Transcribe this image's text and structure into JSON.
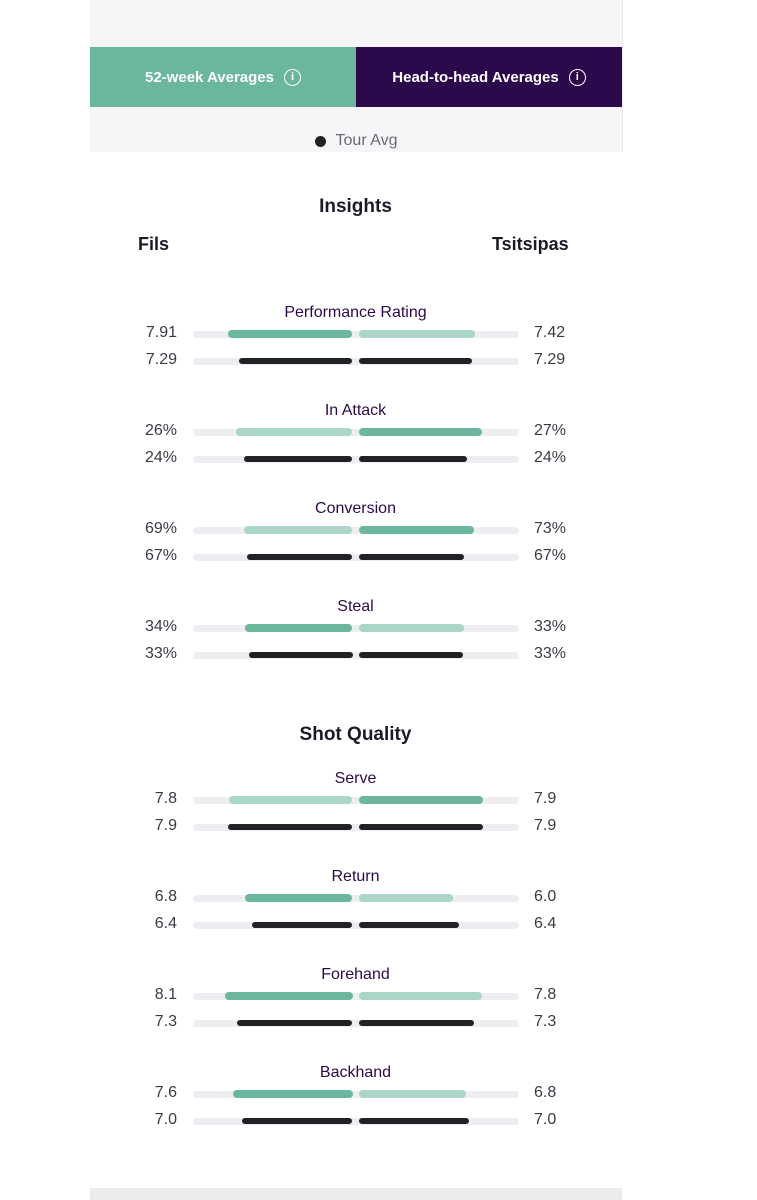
{
  "tabs": [
    {
      "label": "52-week Averages",
      "icon": "info-icon",
      "color": "#6ab79c"
    },
    {
      "label": "Head-to-head Averages",
      "icon": "info-icon",
      "color": "#2b0a4b"
    }
  ],
  "legend": {
    "label": "Tour Avg"
  },
  "players": {
    "left": "Fils",
    "right": "Tsitsipas"
  },
  "colors": {
    "stronger": "#6ab79c",
    "weaker": "#a9d6c6",
    "tour_avg": "#222226",
    "title_purple": "#2b0a4b"
  },
  "sections": [
    {
      "title": "Insights",
      "metrics": [
        {
          "name": "Performance Rating",
          "left": {
            "player": "7.91",
            "avg": "7.29"
          },
          "right": {
            "player": "7.42",
            "avg": "7.29"
          }
        },
        {
          "name": "In Attack",
          "left": {
            "player": "26%",
            "avg": "24%"
          },
          "right": {
            "player": "27%",
            "avg": "24%"
          }
        },
        {
          "name": "Conversion",
          "left": {
            "player": "69%",
            "avg": "67%"
          },
          "right": {
            "player": "73%",
            "avg": "67%"
          }
        },
        {
          "name": "Steal",
          "left": {
            "player": "34%",
            "avg": "33%"
          },
          "right": {
            "player": "33%",
            "avg": "33%"
          }
        }
      ]
    },
    {
      "title": "Shot Quality",
      "metrics": [
        {
          "name": "Serve",
          "left": {
            "player": "7.8",
            "avg": "7.9"
          },
          "right": {
            "player": "7.9",
            "avg": "7.9"
          }
        },
        {
          "name": "Return",
          "left": {
            "player": "6.8",
            "avg": "6.4"
          },
          "right": {
            "player": "6.0",
            "avg": "6.4"
          }
        },
        {
          "name": "Forehand",
          "left": {
            "player": "8.1",
            "avg": "7.3"
          },
          "right": {
            "player": "7.8",
            "avg": "7.3"
          }
        },
        {
          "name": "Backhand",
          "left": {
            "player": "7.6",
            "avg": "7.0"
          },
          "right": {
            "player": "6.8",
            "avg": "7.0"
          }
        }
      ]
    }
  ],
  "bar_levels": {
    "Performance Rating": {
      "left": 0.78,
      "left_avg": 0.71,
      "right": 0.73,
      "right_avg": 0.71
    },
    "In Attack": {
      "left": 0.73,
      "left_avg": 0.68,
      "right": 0.77,
      "right_avg": 0.68
    },
    "Conversion": {
      "left": 0.68,
      "left_avg": 0.66,
      "right": 0.72,
      "right_avg": 0.66
    },
    "Steal": {
      "left": 0.67,
      "left_avg": 0.65,
      "right": 0.66,
      "right_avg": 0.65
    },
    "Serve": {
      "left": 0.77,
      "left_avg": 0.78,
      "right": 0.78,
      "right_avg": 0.78
    },
    "Return": {
      "left": 0.67,
      "left_avg": 0.63,
      "right": 0.59,
      "right_avg": 0.63
    },
    "Forehand": {
      "left": 0.8,
      "left_avg": 0.72,
      "right": 0.77,
      "right_avg": 0.72
    },
    "Backhand": {
      "left": 0.75,
      "left_avg": 0.69,
      "right": 0.67,
      "right_avg": 0.69
    }
  }
}
